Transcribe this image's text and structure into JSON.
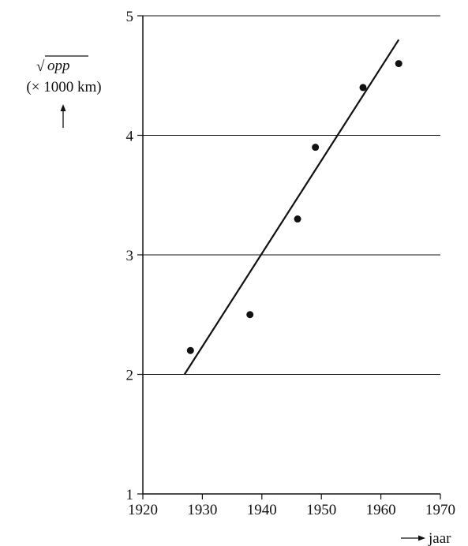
{
  "chart_data": {
    "type": "scatter",
    "title": "",
    "xlabel": "jaar",
    "ylabel": {
      "root_symbol": "√",
      "variable": "opp",
      "unit": "(× 1000 km)"
    },
    "xlim": [
      1920,
      1970
    ],
    "ylim": [
      1,
      5
    ],
    "x_ticks": [
      1920,
      1930,
      1940,
      1950,
      1960,
      1970
    ],
    "y_ticks": [
      1,
      2,
      3,
      4,
      5
    ],
    "x_tick_labels": [
      "1920",
      "1930",
      "1940",
      "1950",
      "1960",
      "1970"
    ],
    "y_tick_labels": [
      "1",
      "2",
      "3",
      "4",
      "5"
    ],
    "grid": "horizontal",
    "points": [
      {
        "x": 1928,
        "y": 2.2
      },
      {
        "x": 1938,
        "y": 2.5
      },
      {
        "x": 1946,
        "y": 3.3
      },
      {
        "x": 1949,
        "y": 3.9
      },
      {
        "x": 1957,
        "y": 4.4
      },
      {
        "x": 1963,
        "y": 4.6
      }
    ],
    "trend_line": {
      "from": {
        "x": 1927,
        "y": 2.0
      },
      "to": {
        "x": 1963,
        "y": 4.8
      }
    }
  }
}
